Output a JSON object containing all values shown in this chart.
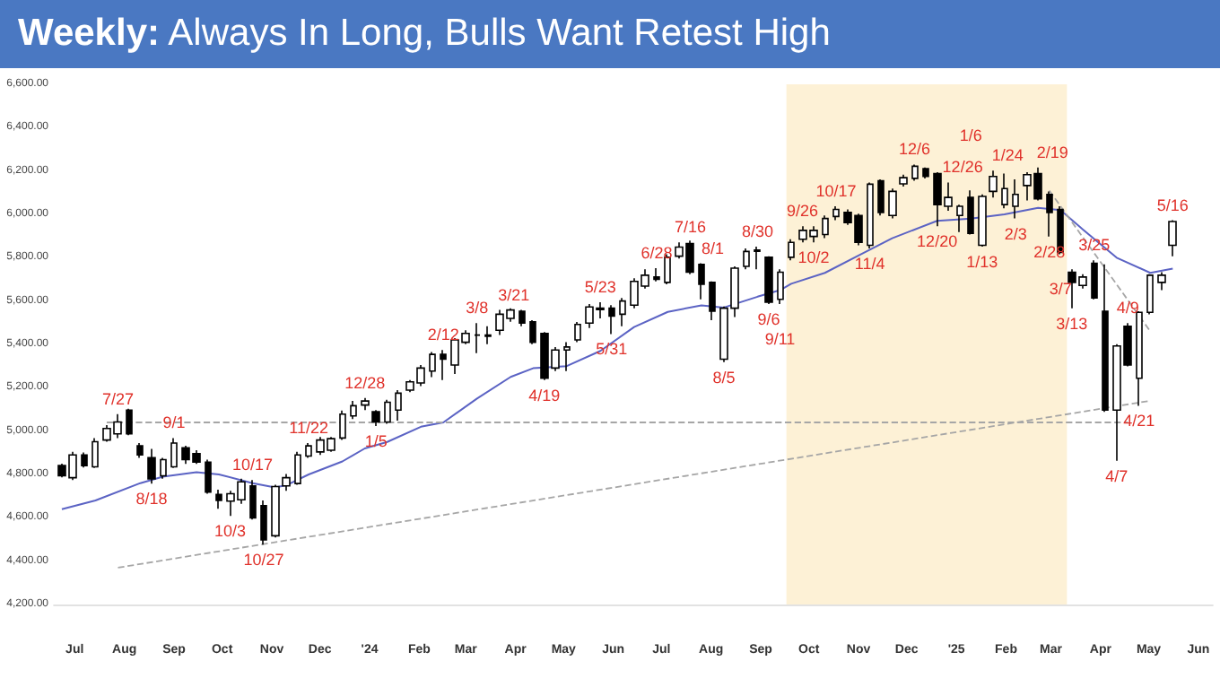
{
  "chart_data": {
    "type": "candlestick",
    "title": "Weekly: Always In Long, Bulls Want Retest High",
    "color": "#000000",
    "x": [
      "2023-06-23",
      "2023-06-30",
      "2023-07-07",
      "2023-07-14",
      "2023-07-21",
      "2023-07-28",
      "2023-08-04",
      "2023-08-11",
      "2023-08-18",
      "2023-08-25",
      "2023-09-01",
      "2023-09-08",
      "2023-09-15",
      "2023-09-22",
      "2023-09-29",
      "2023-10-06",
      "2023-10-13",
      "2023-10-20",
      "2023-10-27",
      "2023-11-03",
      "2023-11-10",
      "2023-11-17",
      "2023-11-24",
      "2023-12-01",
      "2023-12-08",
      "2023-12-15",
      "2023-12-22",
      "2023-12-29",
      "2024-01-05",
      "2024-01-12",
      "2024-01-19",
      "2024-01-26",
      "2024-02-02",
      "2024-02-09",
      "2024-02-16",
      "2024-02-23",
      "2024-03-01",
      "2024-03-08",
      "2024-03-15",
      "2024-03-22",
      "2024-03-29",
      "2024-04-05",
      "2024-04-12",
      "2024-04-19",
      "2024-04-26",
      "2024-05-03",
      "2024-05-10",
      "2024-05-17",
      "2024-05-24",
      "2024-05-31",
      "2024-06-07",
      "2024-06-14",
      "2024-06-21",
      "2024-06-28",
      "2024-07-05",
      "2024-07-12",
      "2024-07-19",
      "2024-07-26",
      "2024-08-02",
      "2024-08-09",
      "2024-08-16",
      "2024-08-23",
      "2024-08-30",
      "2024-09-06",
      "2024-09-13",
      "2024-09-20",
      "2024-09-27",
      "2024-10-04",
      "2024-10-11",
      "2024-10-18",
      "2024-10-25",
      "2024-11-01",
      "2024-11-08",
      "2024-11-15",
      "2024-11-22",
      "2024-11-29",
      "2024-12-06",
      "2024-12-13",
      "2024-12-20",
      "2024-12-27",
      "2025-01-03",
      "2025-01-10",
      "2025-01-17",
      "2025-01-24",
      "2025-01-31",
      "2025-02-07",
      "2025-02-14",
      "2025-02-21",
      "2025-02-28",
      "2025-03-07",
      "2025-03-14",
      "2025-03-21",
      "2025-03-28",
      "2025-04-04",
      "2025-04-11",
      "2025-04-18",
      "2025-04-25",
      "2025-05-02",
      "2025-05-09",
      "2025-05-16"
    ],
    "ohlc": [
      [
        4841,
        4850,
        4787,
        4794
      ],
      [
        4785,
        4904,
        4774,
        4890
      ],
      [
        4890,
        4901,
        4832,
        4841
      ],
      [
        4835,
        4968,
        4830,
        4951
      ],
      [
        4959,
        5028,
        4951,
        5012
      ],
      [
        4987,
        5078,
        4968,
        5042
      ],
      [
        5097,
        5103,
        4981,
        4987
      ],
      [
        4932,
        4945,
        4877,
        4890
      ],
      [
        4877,
        4918,
        4758,
        4780
      ],
      [
        4794,
        4877,
        4780,
        4868
      ],
      [
        4835,
        4968,
        4830,
        4945
      ],
      [
        4923,
        4932,
        4849,
        4868
      ],
      [
        4896,
        4912,
        4849,
        4857
      ],
      [
        4857,
        4868,
        4711,
        4719
      ],
      [
        4708,
        4730,
        4642,
        4680
      ],
      [
        4677,
        4725,
        4609,
        4711
      ],
      [
        4683,
        4780,
        4664,
        4766
      ],
      [
        4747,
        4774,
        4592,
        4600
      ],
      [
        4656,
        4680,
        4476,
        4498
      ],
      [
        4517,
        4752,
        4509,
        4744
      ],
      [
        4747,
        4802,
        4725,
        4785
      ],
      [
        4758,
        4904,
        4752,
        4890
      ],
      [
        4885,
        4945,
        4877,
        4932
      ],
      [
        4904,
        4973,
        4890,
        4959
      ],
      [
        4912,
        4973,
        4904,
        4965
      ],
      [
        4968,
        5095,
        4959,
        5078
      ],
      [
        5070,
        5139,
        5056,
        5117
      ],
      [
        5120,
        5153,
        5097,
        5139
      ],
      [
        5089,
        5097,
        5023,
        5042
      ],
      [
        5042,
        5144,
        5034,
        5133
      ],
      [
        5097,
        5189,
        5048,
        5175
      ],
      [
        5189,
        5236,
        5180,
        5227
      ],
      [
        5222,
        5305,
        5208,
        5291
      ],
      [
        5277,
        5365,
        5249,
        5354
      ],
      [
        5354,
        5374,
        5236,
        5332
      ],
      [
        5305,
        5429,
        5263,
        5421
      ],
      [
        5410,
        5465,
        5401,
        5451
      ],
      [
        5443,
        5498,
        5360,
        5443
      ],
      [
        5443,
        5484,
        5401,
        5437
      ],
      [
        5465,
        5559,
        5443,
        5539
      ],
      [
        5520,
        5567,
        5504,
        5559
      ],
      [
        5553,
        5559,
        5484,
        5498
      ],
      [
        5504,
        5512,
        5401,
        5410
      ],
      [
        5451,
        5457,
        5236,
        5244
      ],
      [
        5291,
        5388,
        5277,
        5374
      ],
      [
        5374,
        5410,
        5277,
        5388
      ],
      [
        5421,
        5503,
        5410,
        5492
      ],
      [
        5498,
        5586,
        5476,
        5573
      ],
      [
        5567,
        5595,
        5520,
        5561
      ],
      [
        5567,
        5581,
        5448,
        5531
      ],
      [
        5539,
        5614,
        5484,
        5600
      ],
      [
        5581,
        5705,
        5567,
        5691
      ],
      [
        5669,
        5747,
        5658,
        5719
      ],
      [
        5711,
        5752,
        5691,
        5700
      ],
      [
        5686,
        5816,
        5677,
        5802
      ],
      [
        5807,
        5871,
        5796,
        5849
      ],
      [
        5865,
        5879,
        5724,
        5733
      ],
      [
        5769,
        5774,
        5608,
        5677
      ],
      [
        5686,
        5691,
        5512,
        5553
      ],
      [
        5332,
        5575,
        5318,
        5567
      ],
      [
        5567,
        5760,
        5526,
        5752
      ],
      [
        5760,
        5843,
        5747,
        5829
      ],
      [
        5830,
        5851,
        5747,
        5835
      ],
      [
        5802,
        5807,
        5586,
        5595
      ],
      [
        5608,
        5747,
        5586,
        5733
      ],
      [
        5802,
        5885,
        5788,
        5871
      ],
      [
        5885,
        5945,
        5871,
        5926
      ],
      [
        5898,
        5945,
        5871,
        5926
      ],
      [
        5907,
        5995,
        5890,
        5981
      ],
      [
        5990,
        6037,
        5973,
        6023
      ],
      [
        6009,
        6023,
        5951,
        5962
      ],
      [
        5995,
        6003,
        5857,
        5871
      ],
      [
        5857,
        6147,
        5843,
        6139
      ],
      [
        6155,
        6161,
        5995,
        6009
      ],
      [
        5995,
        6119,
        5981,
        6106
      ],
      [
        6141,
        6183,
        6128,
        6169
      ],
      [
        6166,
        6230,
        6155,
        6222
      ],
      [
        6211,
        6216,
        6166,
        6175
      ],
      [
        6188,
        6194,
        5945,
        6045
      ],
      [
        6037,
        6147,
        6017,
        6078
      ],
      [
        5995,
        6045,
        5918,
        6037
      ],
      [
        6078,
        6111,
        5907,
        5912
      ],
      [
        5857,
        6092,
        5851,
        6083
      ],
      [
        6106,
        6202,
        6078,
        6175
      ],
      [
        6045,
        6188,
        6028,
        6119
      ],
      [
        6037,
        6161,
        5981,
        6092
      ],
      [
        6133,
        6194,
        6064,
        6183
      ],
      [
        6188,
        6216,
        6064,
        6072
      ],
      [
        6092,
        6106,
        5898,
        6009
      ],
      [
        6023,
        6037,
        5816,
        5824
      ],
      [
        5733,
        5747,
        5567,
        5686
      ],
      [
        5672,
        5724,
        5658,
        5711
      ],
      [
        5774,
        5788,
        5608,
        5614
      ],
      [
        5553,
        5769,
        5089,
        5097
      ],
      [
        5097,
        5401,
        4863,
        5393
      ],
      [
        5484,
        5498,
        5299,
        5305
      ],
      [
        5244,
        5553,
        5117,
        5548
      ],
      [
        5548,
        5724,
        5539,
        5719
      ],
      [
        5686,
        5733,
        5650,
        5719
      ],
      [
        5857,
        5973,
        5807,
        5967
      ]
    ],
    "series": [
      {
        "type": "line",
        "color": "#5b63c4",
        "line_style": "solid",
        "x": [
          "2023-06-23",
          "2023-07-14",
          "2023-08-11",
          "2023-08-25",
          "2023-09-15",
          "2023-09-29",
          "2023-10-20",
          "2023-11-03",
          "2023-11-10",
          "2023-11-24",
          "2023-12-15",
          "2023-12-29",
          "2024-01-12",
          "2024-02-02",
          "2024-02-16",
          "2024-03-08",
          "2024-03-29",
          "2024-04-12",
          "2024-05-03",
          "2024-05-24",
          "2024-06-14",
          "2024-07-05",
          "2024-07-26",
          "2024-08-09",
          "2024-08-30",
          "2024-09-13",
          "2024-09-20",
          "2024-10-11",
          "2024-11-01",
          "2024-11-22",
          "2024-12-20",
          "2025-01-10",
          "2025-01-31",
          "2025-02-21",
          "2025-03-07",
          "2025-03-21",
          "2025-04-11",
          "2025-05-02",
          "2025-05-16"
        ],
        "values": [
          4640,
          4680,
          4760,
          4790,
          4810,
          4800,
          4760,
          4740,
          4750,
          4800,
          4860,
          4920,
          4950,
          5020,
          5040,
          5150,
          5250,
          5290,
          5300,
          5370,
          5480,
          5550,
          5580,
          5570,
          5620,
          5650,
          5680,
          5730,
          5810,
          5890,
          5970,
          5980,
          6000,
          6030,
          6020,
          5930,
          5800,
          5730,
          5750
        ]
      },
      {
        "type": "line",
        "color": "#a6a6a6",
        "line_style": "dashed",
        "x": [
          "2023-07-21",
          "2025-04-18"
        ],
        "values": [
          5040,
          5040
        ]
      },
      {
        "type": "line",
        "color": "#a6a6a6",
        "line_style": "dashed",
        "x": [
          "2023-07-28",
          "2025-05-02"
        ],
        "values": [
          4370,
          5140
        ]
      },
      {
        "type": "line",
        "color": "#a6a6a6",
        "line_style": "dashed",
        "x": [
          "2025-02-28",
          "2025-05-02"
        ],
        "values": [
          6110,
          5460
        ]
      }
    ],
    "bands": [
      {
        "axis": "x",
        "from": "2024-09-17",
        "to": "2025-03-11",
        "color": "#fdf1d6"
      }
    ],
    "annotations": [
      {
        "text": "7/27",
        "x": "2023-07-28",
        "y": 5078
      },
      {
        "text": "8/18",
        "x": "2023-08-18",
        "y": 4758
      },
      {
        "text": "9/1",
        "x": "2023-09-01",
        "y": 4968
      },
      {
        "text": "10/17",
        "x": "2023-10-20",
        "y": 4774
      },
      {
        "text": "10/3",
        "x": "2023-10-06",
        "y": 4609
      },
      {
        "text": "10/27",
        "x": "2023-10-27",
        "y": 4476
      },
      {
        "text": "11/22",
        "x": "2023-11-24",
        "y": 4945
      },
      {
        "text": "12/28",
        "x": "2023-12-29",
        "y": 5153
      },
      {
        "text": "1/5",
        "x": "2024-01-05",
        "y": 5023
      },
      {
        "text": "2/12",
        "x": "2024-02-16",
        "y": 5374
      },
      {
        "text": "3/8",
        "x": "2024-03-08",
        "y": 5498
      },
      {
        "text": "3/21",
        "x": "2024-03-22",
        "y": 5559
      },
      {
        "text": "4/19",
        "x": "2024-04-19",
        "y": 5236
      },
      {
        "text": "5/23",
        "x": "2024-05-24",
        "y": 5595
      },
      {
        "text": "5/31",
        "x": "2024-05-31",
        "y": 5448
      },
      {
        "text": "6/28",
        "x": "2024-06-28",
        "y": 5752
      },
      {
        "text": "7/16",
        "x": "2024-07-19",
        "y": 5871
      },
      {
        "text": "8/1",
        "x": "2024-08-02",
        "y": 5774
      },
      {
        "text": "8/5",
        "x": "2024-08-09",
        "y": 5318
      },
      {
        "text": "8/30",
        "x": "2024-08-30",
        "y": 5851
      },
      {
        "text": "9/6",
        "x": "2024-09-06",
        "y": 5586
      },
      {
        "text": "9/11",
        "x": "2024-09-13",
        "y": 5586
      },
      {
        "text": "9/26",
        "x": "2024-09-27",
        "y": 5945
      },
      {
        "text": "10/2",
        "x": "2024-10-04",
        "y": 5871
      },
      {
        "text": "10/17",
        "x": "2024-10-18",
        "y": 6037
      },
      {
        "text": "11/4",
        "x": "2024-11-08",
        "y": 5843
      },
      {
        "text": "12/6",
        "x": "2024-12-06",
        "y": 6230
      },
      {
        "text": "12/26",
        "x": "2024-12-27",
        "y": 6147
      },
      {
        "text": "12/20",
        "x": "2024-12-20",
        "y": 5945
      },
      {
        "text": "1/6",
        "x": "2025-01-10",
        "y": 6111
      },
      {
        "text": "1/13",
        "x": "2025-01-17",
        "y": 5851
      },
      {
        "text": "1/24",
        "x": "2025-01-24",
        "y": 6202
      },
      {
        "text": "2/3",
        "x": "2025-02-07",
        "y": 5981
      },
      {
        "text": "2/19",
        "x": "2025-02-21",
        "y": 6216
      },
      {
        "text": "2/28",
        "x": "2025-02-28",
        "y": 5898
      },
      {
        "text": "3/7",
        "x": "2025-03-07",
        "y": 5816
      },
      {
        "text": "3/13",
        "x": "2025-03-14",
        "y": 5567
      },
      {
        "text": "3/25",
        "x": "2025-03-28",
        "y": 5788
      },
      {
        "text": "4/9",
        "x": "2025-04-18",
        "y": 5498
      },
      {
        "text": "4/7",
        "x": "2025-04-11",
        "y": 4863
      },
      {
        "text": "4/21",
        "x": "2025-04-25",
        "y": 5117
      },
      {
        "text": "5/16",
        "x": "2025-05-16",
        "y": 5973
      }
    ],
    "xlim": [
      "2023-06-18",
      "2025-06-10"
    ],
    "xticks": [
      {
        "value": "2023-07-01",
        "label": "Jul"
      },
      {
        "value": "2023-08-01",
        "label": "Aug"
      },
      {
        "value": "2023-09-01",
        "label": "Sep"
      },
      {
        "value": "2023-10-01",
        "label": "Oct"
      },
      {
        "value": "2023-11-01",
        "label": "Nov"
      },
      {
        "value": "2023-12-01",
        "label": "Dec"
      },
      {
        "value": "2024-01-01",
        "label": "'24"
      },
      {
        "value": "2024-02-01",
        "label": "Feb"
      },
      {
        "value": "2024-03-01",
        "label": "Mar"
      },
      {
        "value": "2024-04-01",
        "label": "Apr"
      },
      {
        "value": "2024-05-01",
        "label": "May"
      },
      {
        "value": "2024-06-01",
        "label": "Jun"
      },
      {
        "value": "2024-07-01",
        "label": "Jul"
      },
      {
        "value": "2024-08-01",
        "label": "Aug"
      },
      {
        "value": "2024-09-01",
        "label": "Sep"
      },
      {
        "value": "2024-10-01",
        "label": "Oct"
      },
      {
        "value": "2024-11-01",
        "label": "Nov"
      },
      {
        "value": "2024-12-01",
        "label": "Dec"
      },
      {
        "value": "2025-01-01",
        "label": "'25"
      },
      {
        "value": "2025-02-01",
        "label": "Feb"
      },
      {
        "value": "2025-03-01",
        "label": "Mar"
      },
      {
        "value": "2025-04-01",
        "label": "Apr"
      },
      {
        "value": "2025-05-01",
        "label": "May"
      },
      {
        "value": "2025-06-01",
        "label": "Jun"
      }
    ],
    "ylim": [
      4200,
      6600
    ],
    "yticks": [
      {
        "value": 4200,
        "label": "4,200.00"
      },
      {
        "value": 4400,
        "label": "4,400.00"
      },
      {
        "value": 4600,
        "label": "4,600.00"
      },
      {
        "value": 4800,
        "label": "4,800.00"
      },
      {
        "value": 5000,
        "label": "5,000.00"
      },
      {
        "value": 5200,
        "label": "5,200.00"
      },
      {
        "value": 5400,
        "label": "5,400.00"
      },
      {
        "value": 5600,
        "label": "5,600.00"
      },
      {
        "value": 5800,
        "label": "5,800.00"
      },
      {
        "value": 6000,
        "label": "6,000.00"
      },
      {
        "value": 6200,
        "label": "6,200.00"
      },
      {
        "value": 6400,
        "label": "6,400.00"
      },
      {
        "value": 6600,
        "label": "6,600.00"
      }
    ],
    "grid": false,
    "marker": "none"
  }
}
